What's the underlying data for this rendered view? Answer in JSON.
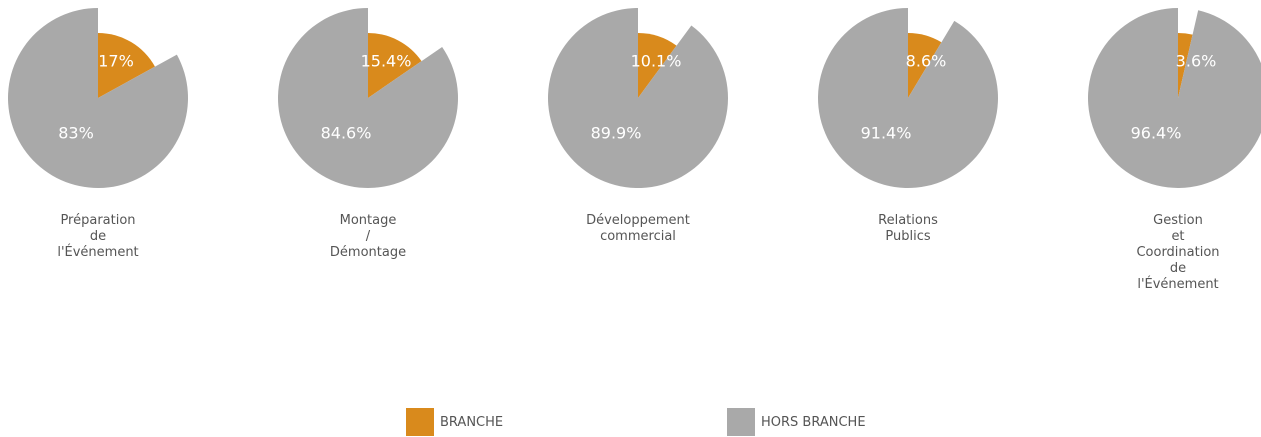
{
  "chart_data": {
    "type": "pie",
    "categories": [
      "Préparation\nde\nl'Événement",
      "Montage\n/\nDémontage",
      "Développement\ncommercial",
      "Relations\nPublics",
      "Gestion\net\nCoordination\nde\nl'Événement"
    ],
    "series": [
      {
        "name": "BRANCHE",
        "color": "#d98a1c",
        "values": [
          17,
          15.4,
          10.1,
          8.6,
          3.6
        ],
        "value_labels": [
          "17%",
          "15.4%",
          "10.1%",
          "8.6%",
          "3.6%"
        ]
      },
      {
        "name": "HORS BRANCHE",
        "color": "#a9a9a9",
        "values": [
          83,
          84.6,
          89.9,
          91.4,
          96.4
        ],
        "value_labels": [
          "83%",
          "84.6%",
          "89.9%",
          "91.4%",
          "96.4%"
        ]
      }
    ],
    "legend": "bottom"
  }
}
